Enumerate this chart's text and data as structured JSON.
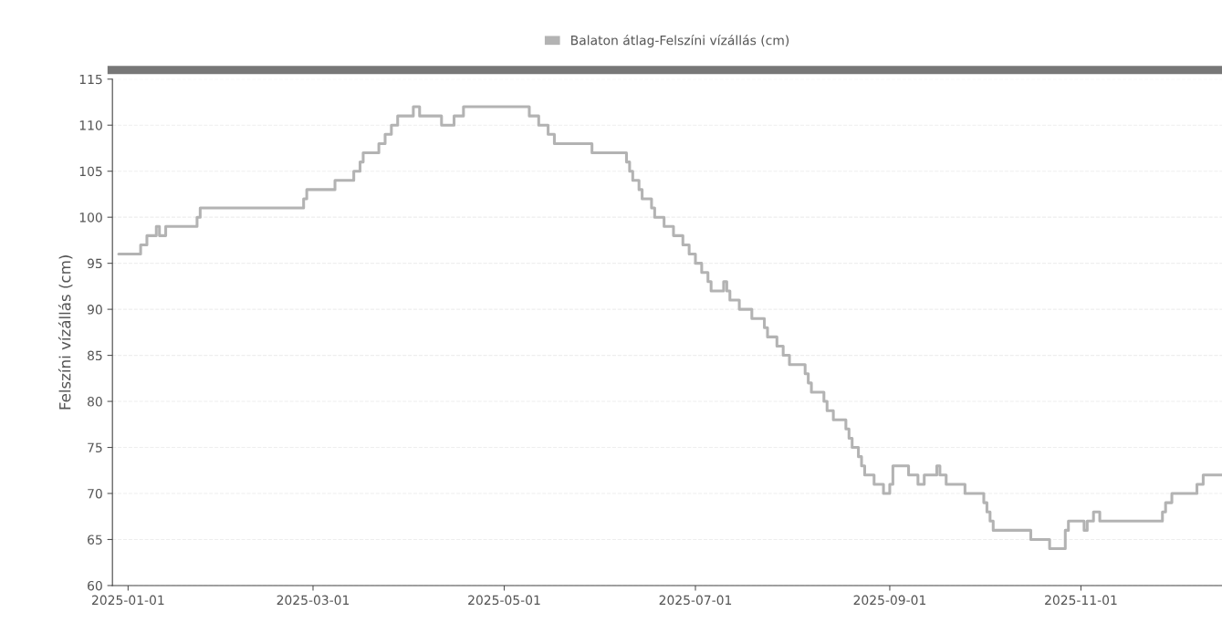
{
  "chart_data": {
    "type": "step",
    "ylabel": "Felszíni vízállás (cm)",
    "x": [
      "2024-12-29",
      "2025-01-05",
      "2025-01-07",
      "2025-01-10",
      "2025-01-11",
      "2025-01-13",
      "2025-01-23",
      "2025-01-24",
      "2025-02-26",
      "2025-02-27",
      "2025-03-08",
      "2025-03-14",
      "2025-03-16",
      "2025-03-17",
      "2025-03-22",
      "2025-03-24",
      "2025-03-26",
      "2025-03-28",
      "2025-04-02",
      "2025-04-04",
      "2025-04-11",
      "2025-04-15",
      "2025-04-18",
      "2025-05-09",
      "2025-05-12",
      "2025-05-15",
      "2025-05-17",
      "2025-05-29",
      "2025-06-09",
      "2025-06-10",
      "2025-06-11",
      "2025-06-13",
      "2025-06-14",
      "2025-06-17",
      "2025-06-18",
      "2025-06-21",
      "2025-06-24",
      "2025-06-27",
      "2025-06-29",
      "2025-07-01",
      "2025-07-03",
      "2025-07-05",
      "2025-07-06",
      "2025-07-10",
      "2025-07-11",
      "2025-07-12",
      "2025-07-15",
      "2025-07-19",
      "2025-07-23",
      "2025-07-24",
      "2025-07-27",
      "2025-07-29",
      "2025-07-31",
      "2025-08-05",
      "2025-08-06",
      "2025-08-07",
      "2025-08-11",
      "2025-08-12",
      "2025-08-14",
      "2025-08-18",
      "2025-08-19",
      "2025-08-20",
      "2025-08-22",
      "2025-08-23",
      "2025-08-24",
      "2025-08-27",
      "2025-08-30",
      "2025-09-01",
      "2025-09-02",
      "2025-09-07",
      "2025-09-10",
      "2025-09-12",
      "2025-09-16",
      "2025-09-17",
      "2025-09-19",
      "2025-09-25",
      "2025-10-01",
      "2025-10-02",
      "2025-10-03",
      "2025-10-04",
      "2025-10-16",
      "2025-10-22",
      "2025-10-27",
      "2025-10-28",
      "2025-11-02",
      "2025-11-03",
      "2025-11-05",
      "2025-11-07",
      "2025-11-27",
      "2025-11-28",
      "2025-11-30",
      "2025-12-08",
      "2025-12-10",
      "2025-12-16"
    ],
    "series": [
      {
        "name": "Balaton átlag-Felszíni vízállás (cm)",
        "color": "#b3b3b3",
        "values": [
          96,
          97,
          98,
          99,
          98,
          99,
          100,
          101,
          102,
          103,
          104,
          105,
          106,
          107,
          108,
          109,
          110,
          111,
          112,
          111,
          110,
          111,
          112,
          111,
          110,
          109,
          108,
          107,
          106,
          105,
          104,
          103,
          102,
          101,
          100,
          99,
          98,
          97,
          96,
          95,
          94,
          93,
          92,
          93,
          92,
          91,
          90,
          89,
          88,
          87,
          86,
          85,
          84,
          83,
          82,
          81,
          80,
          79,
          78,
          77,
          76,
          75,
          74,
          73,
          72,
          71,
          70,
          71,
          73,
          72,
          71,
          72,
          73,
          72,
          71,
          70,
          69,
          68,
          67,
          66,
          65,
          64,
          66,
          67,
          66,
          67,
          68,
          67,
          68,
          69,
          70,
          71,
          72,
          72
        ]
      }
    ],
    "xlim": [
      "2024-12-27",
      "2025-12-16"
    ],
    "xticks": [
      "2025-01-01",
      "2025-03-01",
      "2025-05-01",
      "2025-07-01",
      "2025-09-01",
      "2025-11-01"
    ],
    "ylim": [
      60,
      115
    ],
    "yticks": [
      60,
      65,
      70,
      75,
      80,
      85,
      90,
      95,
      100,
      105,
      110,
      115
    ],
    "grid": "y",
    "legend": "top"
  }
}
